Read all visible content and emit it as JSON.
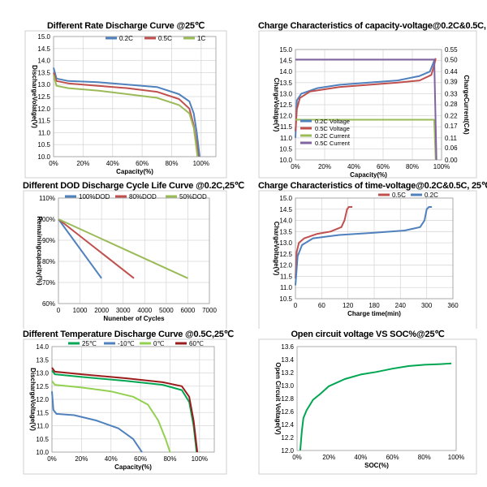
{
  "chart_data": [
    {
      "id": "p1",
      "type": "line",
      "title": "Different Rate Discharge Curve @25℃",
      "xlabel": "Capacity(%)",
      "ylabel": "DischargeVolatge(V)",
      "xlim": [
        0,
        110
      ],
      "ylim": [
        10.0,
        15.0
      ],
      "xticks": [
        0,
        20,
        40,
        60,
        80,
        100
      ],
      "xtick_suffix": "%",
      "yticks": [
        10.0,
        10.5,
        11.0,
        11.5,
        12.0,
        12.5,
        13.0,
        13.5,
        14.0,
        14.5,
        15.0
      ],
      "ytick_decimals": 1,
      "grid": true,
      "legend": "top-right",
      "series": [
        {
          "name": "0.2C",
          "color": "#4f81bd",
          "points": [
            [
              0,
              13.7
            ],
            [
              2,
              13.25
            ],
            [
              10,
              13.15
            ],
            [
              30,
              13.1
            ],
            [
              50,
              13.0
            ],
            [
              70,
              12.9
            ],
            [
              85,
              12.6
            ],
            [
              92,
              12.3
            ],
            [
              95,
              11.8
            ],
            [
              97,
              11.0
            ],
            [
              99,
              10.0
            ]
          ]
        },
        {
          "name": "0.5C",
          "color": "#c0504d",
          "points": [
            [
              0,
              13.5
            ],
            [
              2,
              13.15
            ],
            [
              10,
              13.05
            ],
            [
              30,
              12.95
            ],
            [
              50,
              12.85
            ],
            [
              70,
              12.7
            ],
            [
              85,
              12.4
            ],
            [
              92,
              12.0
            ],
            [
              95,
              11.3
            ],
            [
              97,
              10.5
            ],
            [
              98,
              10.0
            ]
          ]
        },
        {
          "name": "1C",
          "color": "#9bbb59",
          "points": [
            [
              0,
              13.4
            ],
            [
              2,
              12.95
            ],
            [
              10,
              12.85
            ],
            [
              30,
              12.75
            ],
            [
              50,
              12.6
            ],
            [
              70,
              12.45
            ],
            [
              85,
              12.15
            ],
            [
              92,
              11.8
            ],
            [
              95,
              11.2
            ],
            [
              96.5,
              10.5
            ],
            [
              97.5,
              10.0
            ]
          ]
        }
      ]
    },
    {
      "id": "p2",
      "type": "line",
      "title": "Charge Characteristics of capacity-voltage@0.2C&0.5C, 25℃",
      "xlabel": "Capacity(%)",
      "ylabel": "ChargeVolatge(V)",
      "y2label": "ChargeCurrent(CA)",
      "xlim": [
        0,
        100
      ],
      "ylim": [
        10.0,
        15.0
      ],
      "y2lim": [
        0.0,
        0.55
      ],
      "xticks": [
        0,
        20,
        40,
        60,
        80,
        100
      ],
      "xtick_suffix": "%",
      "yticks": [
        10.0,
        10.5,
        11.0,
        11.5,
        12.0,
        12.5,
        13.0,
        13.5,
        14.0,
        14.5,
        15.0
      ],
      "ytick_decimals": 1,
      "y2ticks": [
        0.0,
        0.06,
        0.11,
        0.17,
        0.22,
        0.28,
        0.33,
        0.39,
        0.44,
        0.5,
        0.55
      ],
      "grid": true,
      "legend": "bottom-left",
      "series": [
        {
          "name": "0.2C Voltage",
          "color": "#4f81bd",
          "axis": "y",
          "points": [
            [
              0,
              11.0
            ],
            [
              1,
              12.7
            ],
            [
              4,
              13.0
            ],
            [
              15,
              13.25
            ],
            [
              30,
              13.4
            ],
            [
              50,
              13.5
            ],
            [
              70,
              13.6
            ],
            [
              85,
              13.8
            ],
            [
              92,
              14.0
            ],
            [
              95,
              14.5
            ],
            [
              96,
              14.6
            ]
          ]
        },
        {
          "name": "0.5C Voltage",
          "color": "#c0504d",
          "axis": "y",
          "points": [
            [
              0,
              11.3
            ],
            [
              1,
              12.3
            ],
            [
              3,
              12.8
            ],
            [
              10,
              13.1
            ],
            [
              30,
              13.3
            ],
            [
              50,
              13.4
            ],
            [
              70,
              13.5
            ],
            [
              85,
              13.6
            ],
            [
              93,
              13.85
            ],
            [
              95,
              14.3
            ],
            [
              96,
              14.6
            ]
          ]
        },
        {
          "name": "0.2C Current",
          "color": "#9bbb59",
          "axis": "y2",
          "points": [
            [
              0,
              0.2
            ],
            [
              95,
              0.2
            ],
            [
              96,
              0.0
            ]
          ]
        },
        {
          "name": "0.5C Current",
          "color": "#8064a2",
          "axis": "y2",
          "points": [
            [
              0,
              0.5
            ],
            [
              95,
              0.5
            ],
            [
              96.5,
              0.0
            ]
          ]
        }
      ]
    },
    {
      "id": "p3",
      "type": "line",
      "title": "Different DOD Discharge Cycle Life Curve @0.2C,25℃",
      "xlabel": "Nunenber of Cycles",
      "ylabel": "Remainingcapacity(%)",
      "xlim": [
        0,
        7000
      ],
      "ylim": [
        60,
        110
      ],
      "xticks": [
        0,
        1000,
        2000,
        3000,
        4000,
        5000,
        6000,
        7000
      ],
      "xtick_suffix": "",
      "yticks": [
        60,
        70,
        80,
        90,
        100,
        110
      ],
      "ytick_suffix": "%",
      "grid": true,
      "legend": "top",
      "series": [
        {
          "name": "100%DOD",
          "color": "#4f81bd",
          "points": [
            [
              0,
              100
            ],
            [
              2000,
              72
            ]
          ]
        },
        {
          "name": "80%DOD",
          "color": "#c0504d",
          "points": [
            [
              0,
              100
            ],
            [
              3500,
              72
            ]
          ]
        },
        {
          "name": "50%DOD",
          "color": "#9bbb59",
          "points": [
            [
              0,
              100
            ],
            [
              6000,
              72
            ]
          ]
        }
      ]
    },
    {
      "id": "p4",
      "type": "line",
      "title": "Charge Characteristics of time-voltage@0.2C&0.5C, 25℃",
      "xlabel": "Charge time(min)",
      "ylabel": "ChargeVoltage(V)",
      "xlim": [
        0,
        360
      ],
      "ylim": [
        10.5,
        15.0
      ],
      "xticks": [
        0,
        60,
        120,
        180,
        240,
        300,
        360
      ],
      "xtick_suffix": "",
      "yticks": [
        10.5,
        11.0,
        11.5,
        12.0,
        12.5,
        13.0,
        13.5,
        14.0,
        14.5,
        15.0
      ],
      "ytick_decimals": 1,
      "grid": true,
      "legend": "top-right",
      "series": [
        {
          "name": "0.5C",
          "color": "#c0504d",
          "points": [
            [
              0,
              11.4
            ],
            [
              3,
              12.6
            ],
            [
              8,
              13.0
            ],
            [
              20,
              13.2
            ],
            [
              50,
              13.4
            ],
            [
              80,
              13.5
            ],
            [
              105,
              13.7
            ],
            [
              112,
              14.0
            ],
            [
              118,
              14.5
            ],
            [
              122,
              14.6
            ],
            [
              130,
              14.6
            ]
          ]
        },
        {
          "name": "0.2C",
          "color": "#4f81bd",
          "points": [
            [
              0,
              11.1
            ],
            [
              5,
              12.4
            ],
            [
              15,
              12.9
            ],
            [
              40,
              13.2
            ],
            [
              100,
              13.35
            ],
            [
              180,
              13.45
            ],
            [
              250,
              13.55
            ],
            [
              285,
              13.7
            ],
            [
              295,
              14.0
            ],
            [
              300,
              14.5
            ],
            [
              305,
              14.6
            ],
            [
              312,
              14.6
            ]
          ]
        }
      ]
    },
    {
      "id": "p5",
      "type": "line",
      "title": "Different Temperature Discharge Curve @0.5C,25℃",
      "xlabel": "Capacity(%)",
      "ylabel": "DischargeVoltage(V)",
      "xlim": [
        0,
        110
      ],
      "ylim": [
        10.0,
        14.0
      ],
      "xticks": [
        0,
        20,
        40,
        60,
        80,
        100
      ],
      "xtick_suffix": "%",
      "yticks": [
        10.0,
        10.5,
        11.0,
        11.5,
        12.0,
        12.5,
        13.0,
        13.5,
        14.0
      ],
      "ytick_decimals": 1,
      "grid": true,
      "legend": "top",
      "series": [
        {
          "name": "25℃",
          "color": "#00a651",
          "points": [
            [
              0,
              13.1
            ],
            [
              2,
              12.95
            ],
            [
              20,
              12.85
            ],
            [
              50,
              12.7
            ],
            [
              75,
              12.55
            ],
            [
              88,
              12.35
            ],
            [
              93,
              11.9
            ],
            [
              96,
              11.0
            ],
            [
              98,
              10.0
            ]
          ]
        },
        {
          "name": "-10℃",
          "color": "#4f81bd",
          "points": [
            [
              0,
              12.3
            ],
            [
              1,
              11.6
            ],
            [
              3,
              11.45
            ],
            [
              15,
              11.4
            ],
            [
              30,
              11.2
            ],
            [
              45,
              10.9
            ],
            [
              55,
              10.5
            ],
            [
              61,
              10.0
            ]
          ]
        },
        {
          "name": "0℃",
          "color": "#92d050",
          "points": [
            [
              0,
              12.7
            ],
            [
              2,
              12.55
            ],
            [
              20,
              12.45
            ],
            [
              40,
              12.3
            ],
            [
              55,
              12.1
            ],
            [
              65,
              11.8
            ],
            [
              72,
              11.2
            ],
            [
              77,
              10.5
            ],
            [
              80,
              10.0
            ]
          ]
        },
        {
          "name": "60℃",
          "color": "#9b1c1c",
          "points": [
            [
              0,
              13.2
            ],
            [
              2,
              13.05
            ],
            [
              20,
              12.95
            ],
            [
              50,
              12.8
            ],
            [
              75,
              12.65
            ],
            [
              88,
              12.5
            ],
            [
              93,
              12.1
            ],
            [
              96,
              11.2
            ],
            [
              98.5,
              10.0
            ]
          ]
        }
      ]
    },
    {
      "id": "p6",
      "type": "line",
      "title": "Open circuit voltage VS SOC%@25℃",
      "xlabel": "SOC(%)",
      "ylabel": "Open Circuit Voltage(V)",
      "xlim": [
        0,
        100
      ],
      "ylim": [
        12.0,
        13.6
      ],
      "xticks": [
        0,
        20,
        40,
        60,
        80,
        100
      ],
      "xtick_suffix": "%",
      "yticks": [
        12.0,
        12.2,
        12.4,
        12.6,
        12.8,
        13.0,
        13.2,
        13.4,
        13.6
      ],
      "ytick_decimals": 1,
      "grid": false,
      "legend": "none",
      "series": [
        {
          "name": "",
          "color": "#00a651",
          "points": [
            [
              2,
              12.0
            ],
            [
              3,
              12.3
            ],
            [
              4,
              12.5
            ],
            [
              6,
              12.62
            ],
            [
              10,
              12.78
            ],
            [
              15,
              12.88
            ],
            [
              20,
              12.99
            ],
            [
              30,
              13.1
            ],
            [
              40,
              13.17
            ],
            [
              50,
              13.21
            ],
            [
              60,
              13.26
            ],
            [
              70,
              13.3
            ],
            [
              80,
              13.32
            ],
            [
              90,
              13.33
            ],
            [
              97,
              13.34
            ]
          ]
        }
      ]
    }
  ]
}
